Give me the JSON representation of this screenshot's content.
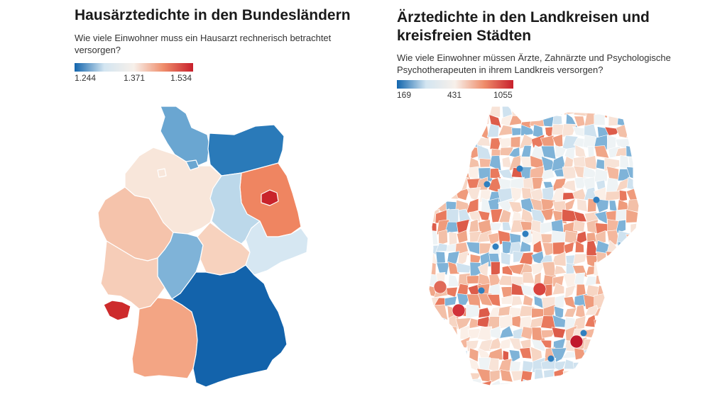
{
  "left": {
    "title": "Hausärztedichte in den Bundesländern",
    "subtitle": "Wie viele Einwohner muss ein Hausarzt rechnerisch betrachtet versorgen?",
    "legend": {
      "min": "1.244",
      "mid": "1.371",
      "max": "1.534",
      "colors": [
        "#1265ad",
        "#d3e5f1",
        "#f7f0ea",
        "#ef8d6b",
        "#c8202c"
      ]
    },
    "states": [
      {
        "name": "Schleswig-Holstein",
        "color": "#6aa6d1"
      },
      {
        "name": "Mecklenburg-Vorpommern",
        "color": "#2a7ab9"
      },
      {
        "name": "Niedersachsen",
        "color": "#f8e6da"
      },
      {
        "name": "Bremen",
        "color": "#f8e6da"
      },
      {
        "name": "Hamburg",
        "color": "#6aa6d1"
      },
      {
        "name": "Brandenburg",
        "color": "#ef8561"
      },
      {
        "name": "Berlin",
        "color": "#c9242b"
      },
      {
        "name": "Sachsen-Anhalt",
        "color": "#bcd8ea"
      },
      {
        "name": "Nordrhein-Westfalen",
        "color": "#f5c3ab"
      },
      {
        "name": "Hessen",
        "color": "#7fb3d8"
      },
      {
        "name": "Thüringen",
        "color": "#f7d2be"
      },
      {
        "name": "Sachsen",
        "color": "#d6e7f2"
      },
      {
        "name": "Rheinland-Pfalz",
        "color": "#f6cdb8"
      },
      {
        "name": "Saarland",
        "color": "#cd2b2c"
      },
      {
        "name": "Baden-Württemberg",
        "color": "#f3a584"
      },
      {
        "name": "Bayern",
        "color": "#1363ab"
      }
    ]
  },
  "right": {
    "title_line1": "Ärztedichte in den Landkreisen und",
    "title_line2": "kreisfreien Städten",
    "subtitle_line1": "Wie viele Einwohner müssen Ärzte, Zahnärzte und Psychologische",
    "subtitle_line2": "Psychotherapeuten in ihrem Landkreis versorgen?",
    "legend": {
      "min": "169",
      "mid": "431",
      "max": "1055",
      "colors": [
        "#1265ad",
        "#d3e5f1",
        "#f7f0ea",
        "#ef8d6b",
        "#c8202c"
      ]
    },
    "palette": [
      "#f7d5c3",
      "#f4b79d",
      "#ef9b7c",
      "#f8e3d7",
      "#fbefe7",
      "#e97a5e",
      "#f3c0a8",
      "#dd5c4a",
      "#cfe2ef",
      "#7fb3d8",
      "#eef3f5",
      "#f0a688"
    ]
  }
}
